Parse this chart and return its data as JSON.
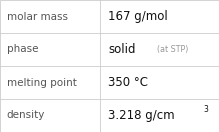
{
  "rows": [
    {
      "label": "molar mass",
      "value": "167 g/mol",
      "value_extra": null,
      "superscript": null
    },
    {
      "label": "phase",
      "value": "solid",
      "value_extra": "(at STP)",
      "superscript": null
    },
    {
      "label": "melting point",
      "value": "350 °C",
      "value_extra": null,
      "superscript": null
    },
    {
      "label": "density",
      "value": "3.218 g/cm",
      "value_extra": null,
      "superscript": "3"
    }
  ],
  "border_color": "#cccccc",
  "background_color": "#ffffff",
  "label_color": "#555555",
  "value_color": "#111111",
  "extra_color": "#999999",
  "label_fontsize": 7.5,
  "value_fontsize": 8.5,
  "extra_fontsize": 5.8,
  "super_fontsize": 5.5,
  "col_split": 0.455,
  "figwidth": 2.19,
  "figheight": 1.32,
  "dpi": 100
}
